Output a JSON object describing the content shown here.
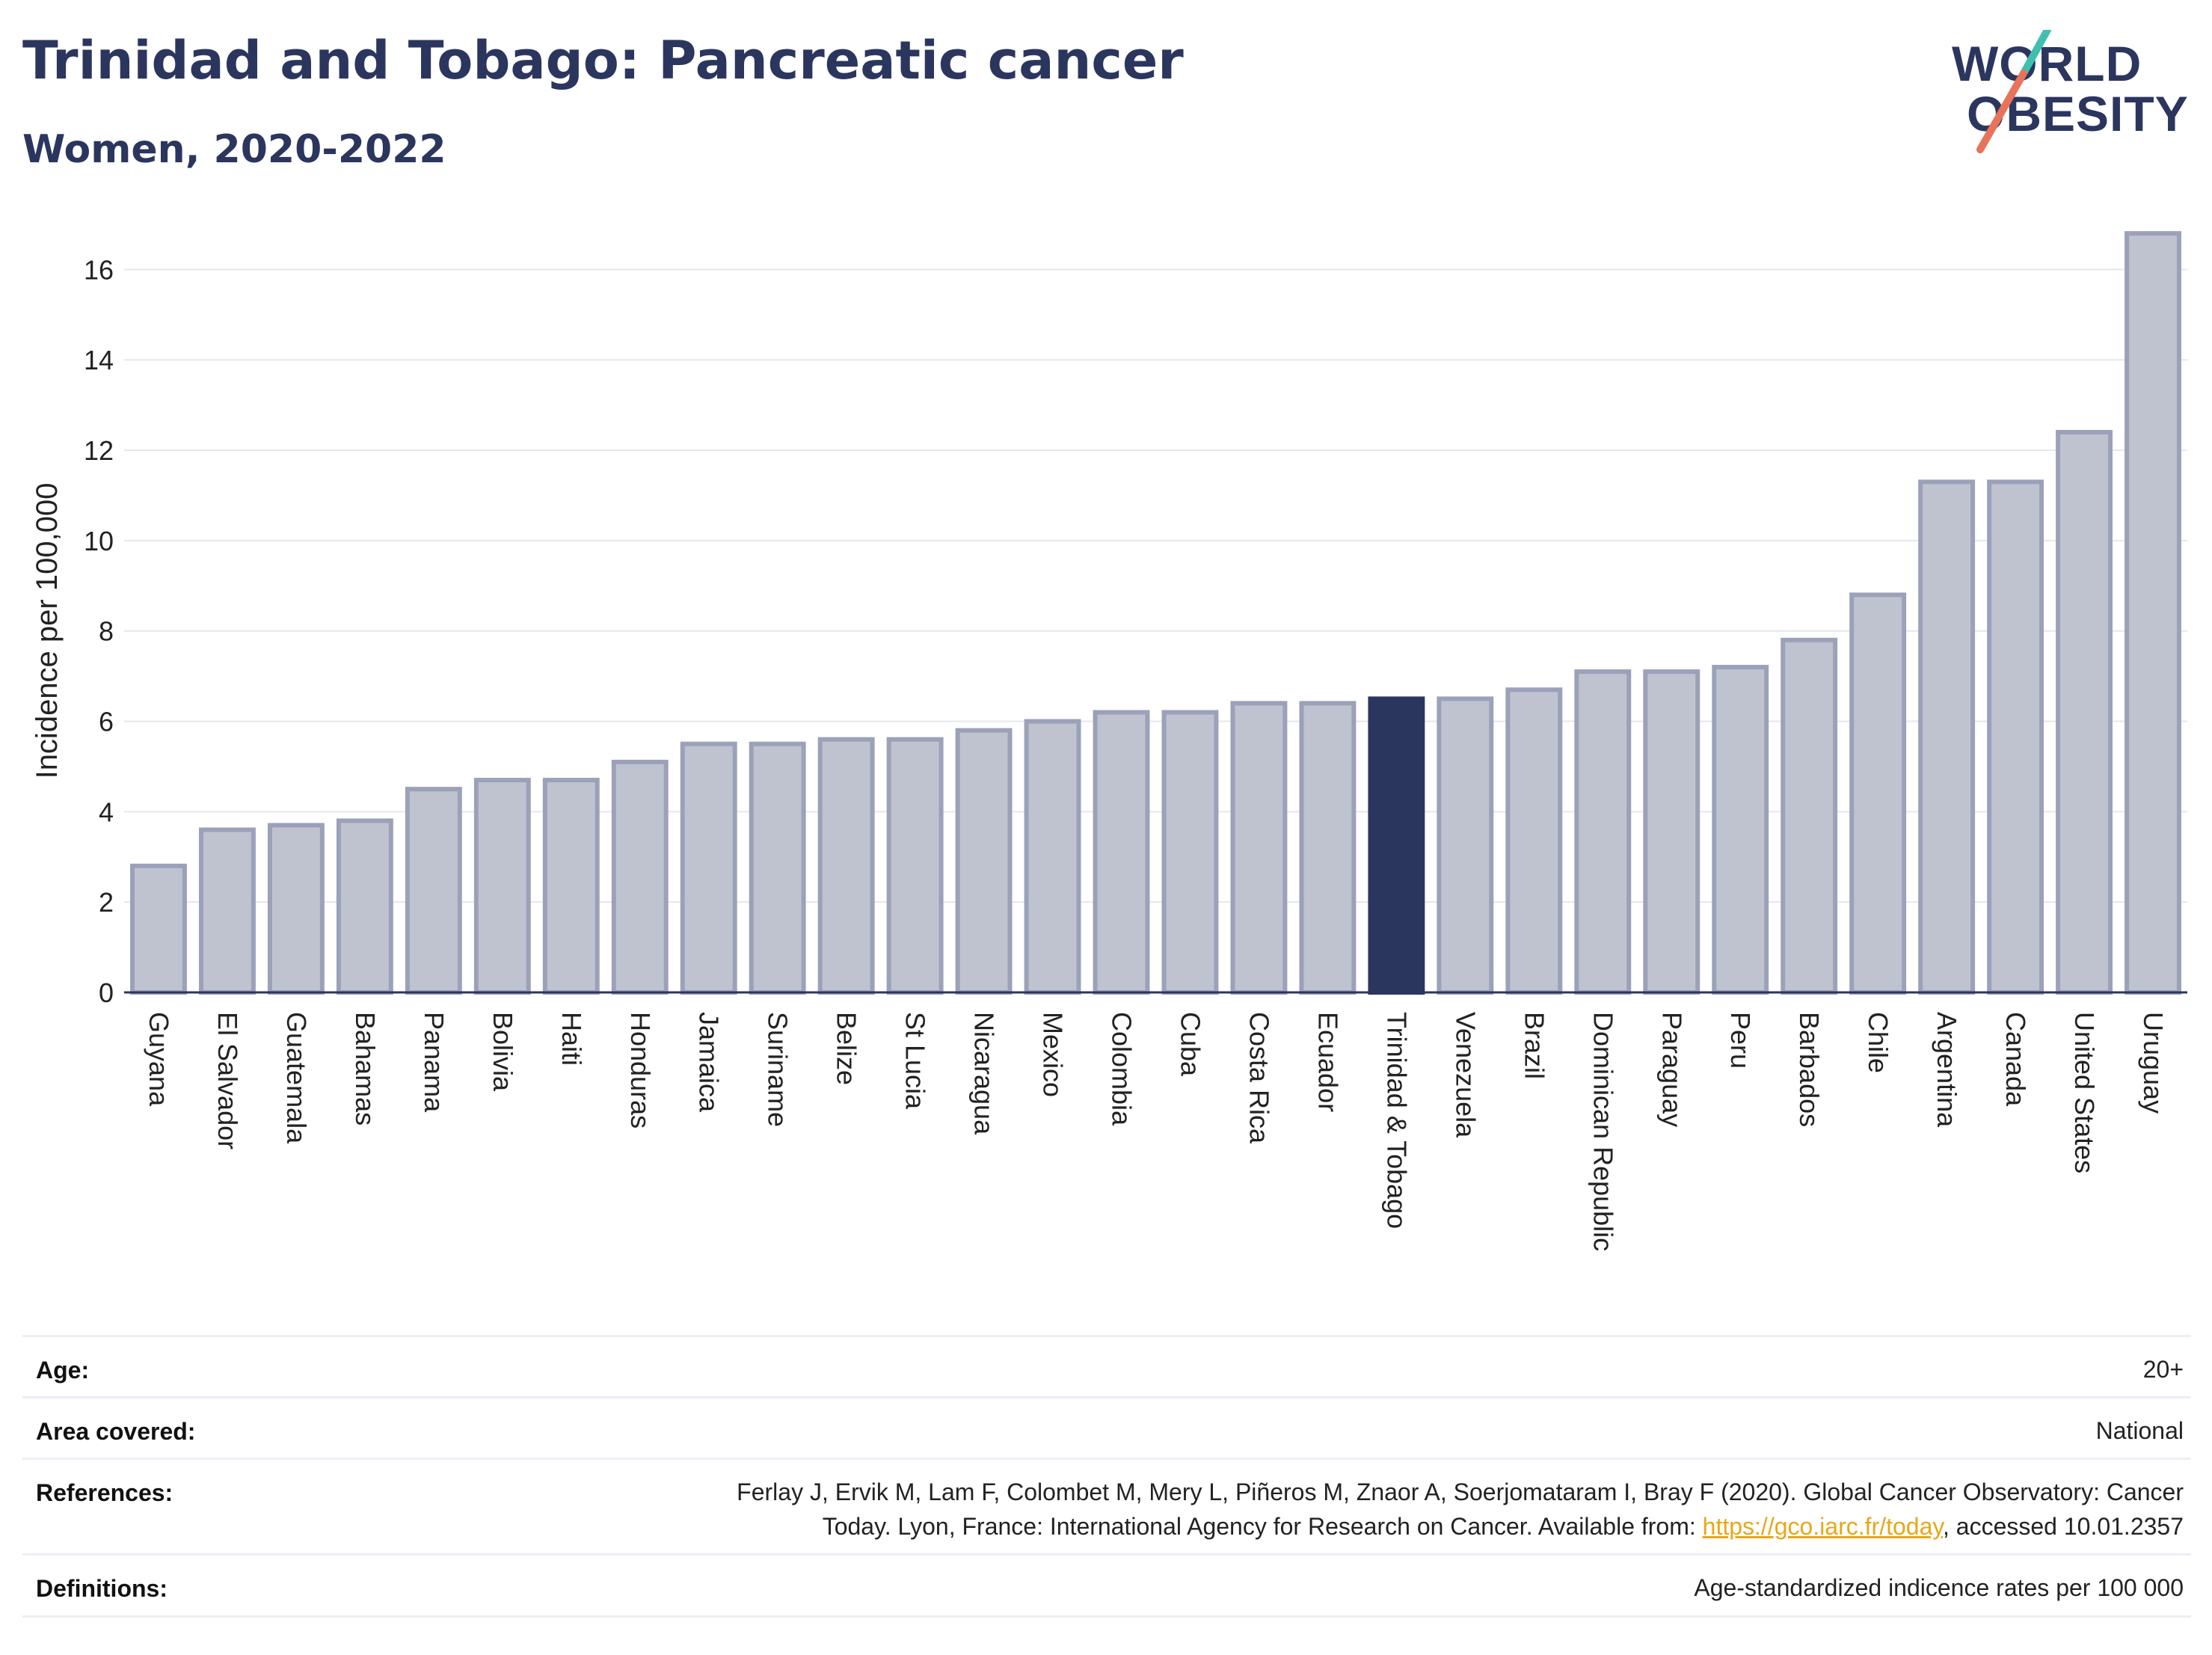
{
  "header": {
    "title": "Trinidad and Tobago: Pancreatic cancer",
    "subtitle": "Women, 2020-2022"
  },
  "logo": {
    "line1": "WORLD",
    "line2": "OBESITY",
    "colors": {
      "text": "#2b365f",
      "slash_top": "#3fbfb0",
      "slash_bottom": "#e8735a"
    }
  },
  "colors": {
    "bar": "#bfc3d0",
    "bar_border": "#9ba1b8",
    "highlight": "#2b365f",
    "grid": "#e6e7ec",
    "axis": "#2b365f"
  },
  "chart_data": {
    "type": "bar",
    "title": "Trinidad and Tobago: Pancreatic cancer",
    "subtitle": "Women, 2020-2022",
    "ylabel": "Incidence per 100,000",
    "xlabel": "",
    "ylim": [
      0,
      17
    ],
    "yticks": [
      0,
      2,
      4,
      6,
      8,
      10,
      12,
      14,
      16
    ],
    "grid": true,
    "highlight_category": "Trinidad & Tobago",
    "categories": [
      "Guyana",
      "El Salvador",
      "Guatemala",
      "Bahamas",
      "Panama",
      "Bolivia",
      "Haiti",
      "Honduras",
      "Jamaica",
      "Suriname",
      "Belize",
      "St Lucia",
      "Nicaragua",
      "Mexico",
      "Colombia",
      "Cuba",
      "Costa Rica",
      "Ecuador",
      "Trinidad & Tobago",
      "Venezuela",
      "Brazil",
      "Dominican Republic",
      "Paraguay",
      "Peru",
      "Barbados",
      "Chile",
      "Argentina",
      "Canada",
      "United States",
      "Uruguay"
    ],
    "values": [
      2.8,
      3.6,
      3.7,
      3.8,
      4.5,
      4.7,
      4.7,
      5.1,
      5.5,
      5.5,
      5.6,
      5.6,
      5.8,
      6.0,
      6.2,
      6.2,
      6.4,
      6.4,
      6.5,
      6.5,
      6.7,
      7.1,
      7.1,
      7.2,
      7.8,
      8.8,
      11.3,
      11.3,
      12.4,
      16.8
    ]
  },
  "info": {
    "age_label": "Age:",
    "age_value": "20+",
    "area_label": "Area covered:",
    "area_value": "National",
    "references_label": "References:",
    "references_line1": "Ferlay J, Ervik M, Lam F, Colombet M, Mery L, Piñeros M, Znaor A, Soerjomataram I, Bray F (2020). Global Cancer Observatory: Cancer",
    "references_line2_pre": "Today. Lyon, France: International Agency for Research on Cancer. Available from: ",
    "references_link": "https://gco.iarc.fr/today",
    "references_line2_post": ", accessed 10.01.2357",
    "definitions_label": "Definitions:",
    "definitions_value": "Age-standardized indicence rates per 100 000"
  }
}
